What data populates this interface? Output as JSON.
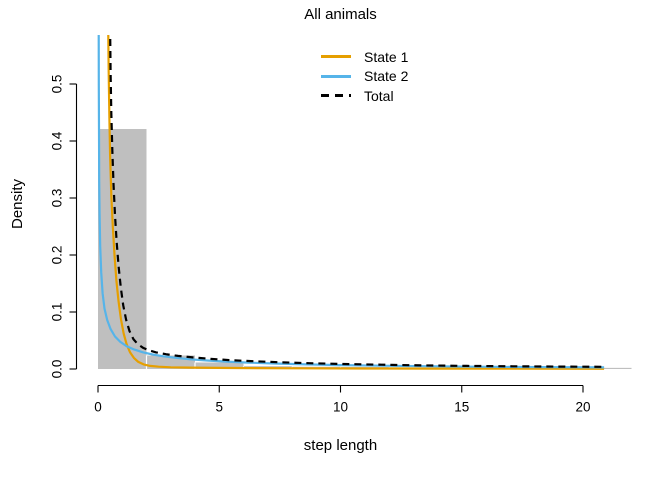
{
  "title": "All animals",
  "xlabel": "step length",
  "ylabel": "Density",
  "legend": [
    {
      "label": "State 1",
      "color": "#E69F00",
      "style": "solid"
    },
    {
      "label": "State 2",
      "color": "#56B4E9",
      "style": "solid"
    },
    {
      "label": "Total",
      "color": "#000000",
      "style": "dashed"
    }
  ],
  "colors": {
    "hist_fill": "#BFBFBF",
    "hist_separator": "#FFFFFF",
    "axis": "#000000",
    "text": "#000000",
    "background": "#FFFFFF"
  },
  "chart_data": {
    "type": "line",
    "subtype": "histogram-with-density-curves",
    "title": "All animals",
    "xlabel": "step length",
    "ylabel": "Density",
    "xlim": [
      0,
      20.9
    ],
    "ylim": [
      0,
      0.586
    ],
    "x_ticks": [
      "0",
      "5",
      "10",
      "15",
      "20"
    ],
    "y_ticks": [
      "0.0",
      "0.1",
      "0.2",
      "0.3",
      "0.4",
      "0.5"
    ],
    "grid": false,
    "legend_position": "top-center-inside",
    "histogram": {
      "bin_width": 2,
      "bins": [
        [
          0,
          2,
          0.421
        ],
        [
          2,
          4,
          0.0237
        ],
        [
          4,
          6,
          0.0114
        ],
        [
          6,
          8,
          0.005
        ],
        [
          8,
          10,
          0.004
        ],
        [
          10,
          12,
          0.0035
        ],
        [
          12,
          14,
          0.003
        ],
        [
          14,
          16,
          0.003
        ],
        [
          16,
          18,
          0.0025
        ],
        [
          18,
          20,
          0.0025
        ],
        [
          20,
          22,
          0.002
        ]
      ]
    },
    "series": [
      {
        "name": "State 1",
        "color": "#E69F00",
        "dash": "solid",
        "points": [
          [
            0.42,
            0.6
          ],
          [
            0.44,
            0.52
          ],
          [
            0.47,
            0.44
          ],
          [
            0.5,
            0.375
          ],
          [
            0.55,
            0.305
          ],
          [
            0.61,
            0.25
          ],
          [
            0.68,
            0.2
          ],
          [
            0.76,
            0.155
          ],
          [
            0.85,
            0.118
          ],
          [
            0.95,
            0.087
          ],
          [
            1.06,
            0.062
          ],
          [
            1.18,
            0.0435
          ],
          [
            1.32,
            0.0295
          ],
          [
            1.48,
            0.0195
          ],
          [
            1.66,
            0.0125
          ],
          [
            1.88,
            0.008
          ],
          [
            2.15,
            0.0055
          ],
          [
            2.5,
            0.004
          ],
          [
            3.0,
            0.003
          ],
          [
            3.8,
            0.0024
          ],
          [
            5.0,
            0.0019
          ],
          [
            6.5,
            0.0015
          ],
          [
            8.5,
            0.0012
          ],
          [
            11,
            0.0009
          ],
          [
            14,
            0.0007
          ],
          [
            17,
            0.0005
          ],
          [
            20.87,
            0.0004
          ]
        ]
      },
      {
        "name": "State 2",
        "color": "#56B4E9",
        "dash": "solid",
        "points": [
          [
            0.03,
            0.6
          ],
          [
            0.035,
            0.5
          ],
          [
            0.04,
            0.42
          ],
          [
            0.05,
            0.33
          ],
          [
            0.065,
            0.27
          ],
          [
            0.09,
            0.215
          ],
          [
            0.13,
            0.17
          ],
          [
            0.19,
            0.133
          ],
          [
            0.27,
            0.106
          ],
          [
            0.38,
            0.086
          ],
          [
            0.52,
            0.07
          ],
          [
            0.7,
            0.057
          ],
          [
            0.92,
            0.0475
          ],
          [
            1.18,
            0.04
          ],
          [
            1.5,
            0.034
          ],
          [
            1.85,
            0.0293
          ],
          [
            2.25,
            0.0255
          ],
          [
            2.7,
            0.0223
          ],
          [
            3.2,
            0.0196
          ],
          [
            3.8,
            0.0171
          ],
          [
            4.5,
            0.0149
          ],
          [
            5.3,
            0.013
          ],
          [
            6.2,
            0.0113
          ],
          [
            7.3,
            0.0096
          ],
          [
            8.6,
            0.0081
          ],
          [
            10,
            0.0069
          ],
          [
            11.7,
            0.0058
          ],
          [
            13.5,
            0.0049
          ],
          [
            15.5,
            0.0041
          ],
          [
            17.5,
            0.0035
          ],
          [
            19.2,
            0.0031
          ],
          [
            20.87,
            0.0028
          ]
        ]
      },
      {
        "name": "Total",
        "color": "#000000",
        "dash": "dashed",
        "points": [
          [
            0.5,
            0.6
          ],
          [
            0.52,
            0.52
          ],
          [
            0.55,
            0.45
          ],
          [
            0.59,
            0.385
          ],
          [
            0.64,
            0.325
          ],
          [
            0.7,
            0.27
          ],
          [
            0.77,
            0.222
          ],
          [
            0.85,
            0.18
          ],
          [
            0.94,
            0.143
          ],
          [
            1.04,
            0.112
          ],
          [
            1.16,
            0.0865
          ],
          [
            1.3,
            0.0665
          ],
          [
            1.46,
            0.0525
          ],
          [
            1.64,
            0.0435
          ],
          [
            1.85,
            0.0373
          ],
          [
            2.1,
            0.0328
          ],
          [
            2.4,
            0.0292
          ],
          [
            2.8,
            0.0259
          ],
          [
            3.3,
            0.0229
          ],
          [
            3.9,
            0.0203
          ],
          [
            4.6,
            0.0179
          ],
          [
            5.4,
            0.0157
          ],
          [
            6.3,
            0.0138
          ],
          [
            7.4,
            0.0119
          ],
          [
            8.7,
            0.0102
          ],
          [
            10.1,
            0.0088
          ],
          [
            11.7,
            0.0075
          ],
          [
            13.4,
            0.0064
          ],
          [
            15.2,
            0.0055
          ],
          [
            17.1,
            0.0048
          ],
          [
            19,
            0.0042
          ],
          [
            20.87,
            0.0038
          ]
        ]
      }
    ]
  }
}
